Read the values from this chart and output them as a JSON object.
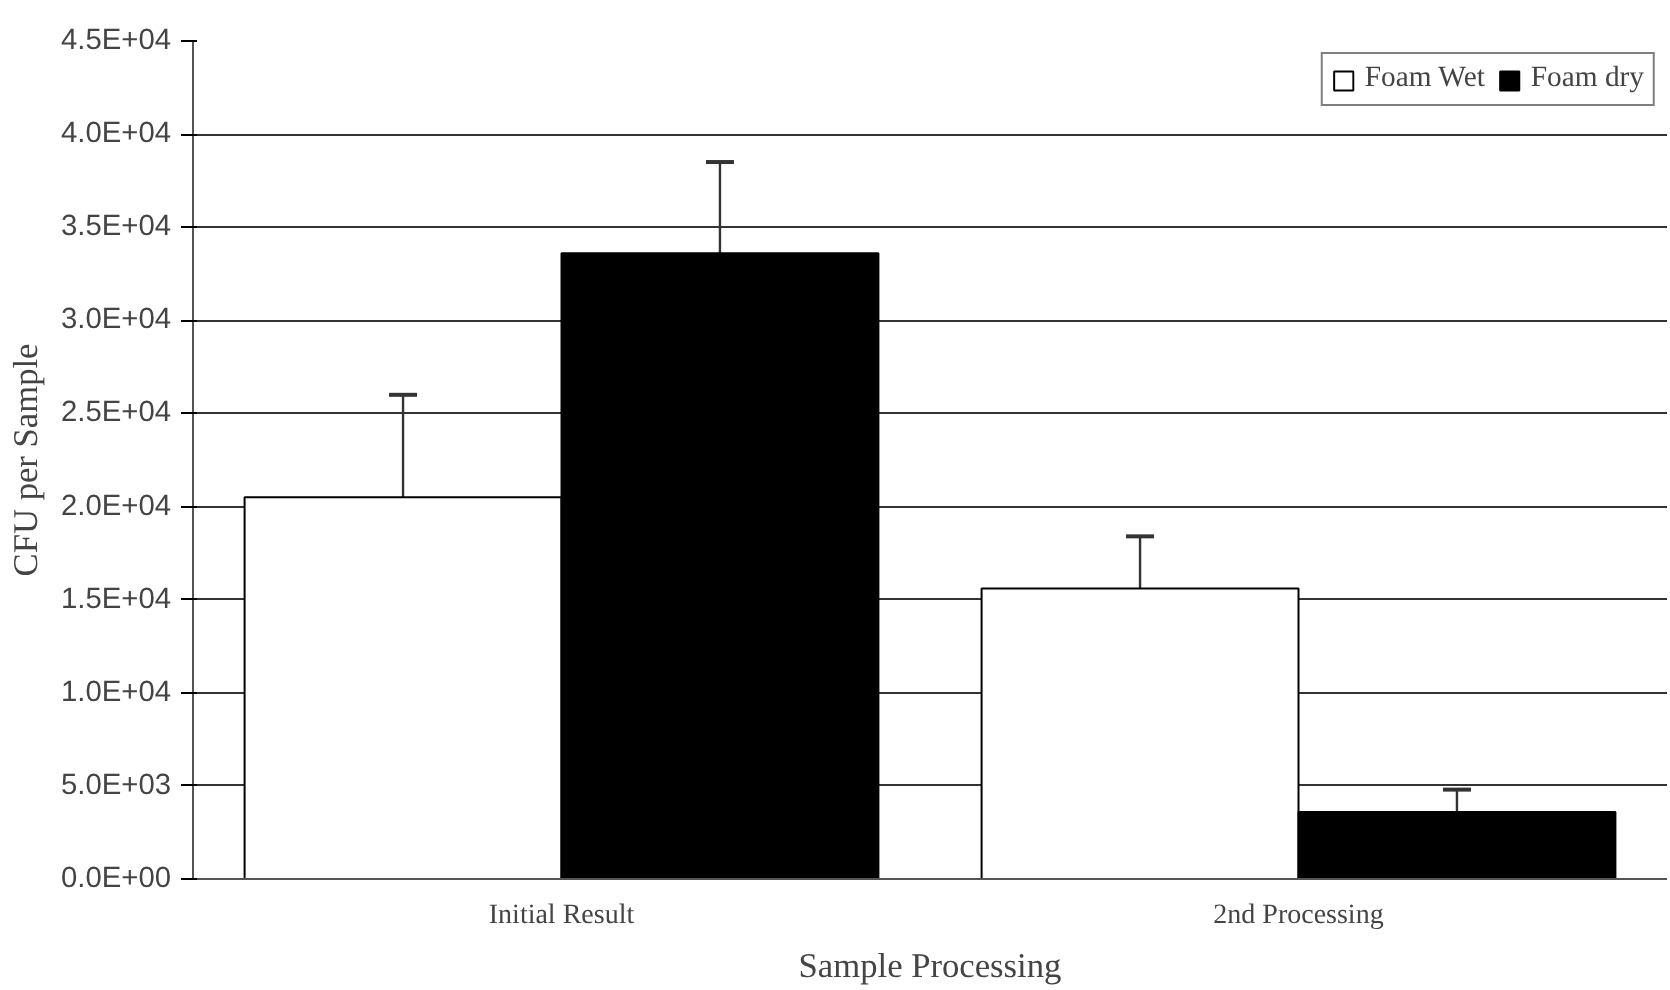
{
  "chart_data": {
    "type": "bar",
    "xlabel": "Sample Processing",
    "ylabel": "CFU per Sample",
    "categories": [
      "Initial Result",
      "2nd Processing"
    ],
    "series": [
      {
        "name": "Foam Wet",
        "color": "#ffffff",
        "values": [
          20500,
          15600
        ],
        "errors": [
          [
            20500,
            26000
          ],
          [
            15600,
            18400
          ]
        ]
      },
      {
        "name": "Foam dry",
        "color": "#000000",
        "values": [
          33600,
          3600
        ],
        "errors": [
          [
            33600,
            38500
          ],
          [
            3600,
            4800
          ]
        ]
      }
    ],
    "ylim": [
      0,
      45000
    ],
    "yticks": [
      {
        "value": 0,
        "label": "0.0E+00"
      },
      {
        "value": 5000,
        "label": "5.0E+03"
      },
      {
        "value": 10000,
        "label": "1.0E+04"
      },
      {
        "value": 15000,
        "label": "1.5E+04"
      },
      {
        "value": 20000,
        "label": "2.0E+04"
      },
      {
        "value": 25000,
        "label": "2.5E+04"
      },
      {
        "value": 30000,
        "label": "3.0E+04"
      },
      {
        "value": 35000,
        "label": "3.5E+04"
      },
      {
        "value": 40000,
        "label": "4.0E+04"
      },
      {
        "value": 45000,
        "label": "4.5E+04"
      }
    ],
    "grid": "y",
    "legend": "top right"
  }
}
